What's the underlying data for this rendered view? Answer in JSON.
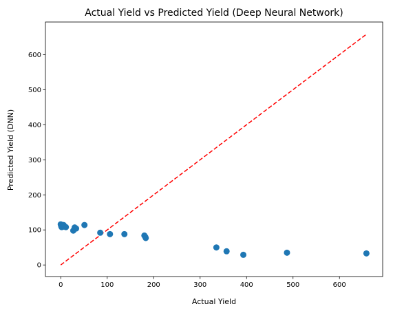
{
  "chart_data": {
    "type": "scatter",
    "title": "Actual Yield vs Predicted Yield (Deep Neural Network)",
    "xlabel": "Actual Yield",
    "ylabel": "Predicted Yield (DNN)",
    "xlim": [
      -33,
      693
    ],
    "ylim": [
      -33,
      693
    ],
    "xticks": [
      0,
      100,
      200,
      300,
      400,
      500,
      600
    ],
    "yticks": [
      0,
      100,
      200,
      300,
      400,
      500,
      600
    ],
    "grid": false,
    "marker_color": "#1f77b4",
    "reference_line": {
      "x": [
        0,
        658
      ],
      "y": [
        0,
        658
      ],
      "color": "#ff0000",
      "style": "dashed"
    },
    "points": [
      {
        "x": 0,
        "y": 116
      },
      {
        "x": 1,
        "y": 111
      },
      {
        "x": 2,
        "y": 108
      },
      {
        "x": 3,
        "y": 113
      },
      {
        "x": 4,
        "y": 109
      },
      {
        "x": 6,
        "y": 114
      },
      {
        "x": 8,
        "y": 110
      },
      {
        "x": 11,
        "y": 108
      },
      {
        "x": 27,
        "y": 98
      },
      {
        "x": 30,
        "y": 107
      },
      {
        "x": 33,
        "y": 104
      },
      {
        "x": 51,
        "y": 114
      },
      {
        "x": 85,
        "y": 92
      },
      {
        "x": 106,
        "y": 88
      },
      {
        "x": 137,
        "y": 88
      },
      {
        "x": 180,
        "y": 84
      },
      {
        "x": 182,
        "y": 80
      },
      {
        "x": 183,
        "y": 77
      },
      {
        "x": 335,
        "y": 50
      },
      {
        "x": 357,
        "y": 39
      },
      {
        "x": 393,
        "y": 29
      },
      {
        "x": 487,
        "y": 35
      },
      {
        "x": 658,
        "y": 33
      }
    ]
  }
}
